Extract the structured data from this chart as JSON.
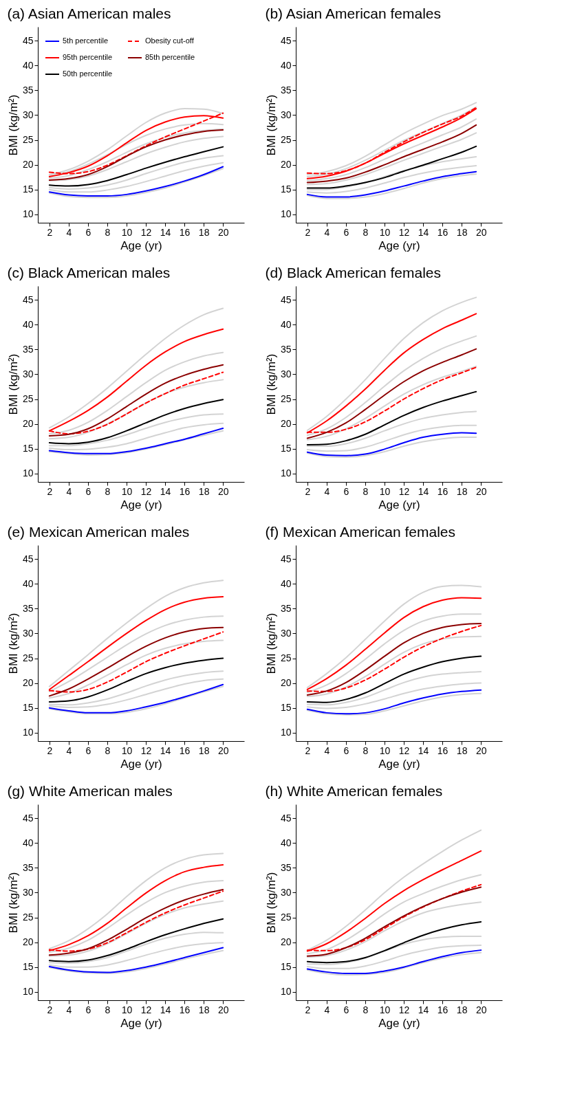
{
  "chart_data": [
    {
      "type": "line",
      "title": "(a) Asian American males",
      "xlabel": "Age (yr)",
      "ylabel": "BMI (kg/m²)",
      "x": [
        2,
        4,
        6,
        8,
        10,
        12,
        14,
        16,
        18,
        20
      ],
      "xlim": [
        0.8,
        22.2
      ],
      "ylim": [
        8.3,
        47.8
      ],
      "xticks": [
        2,
        4,
        6,
        8,
        10,
        12,
        14,
        16,
        18,
        20
      ],
      "yticks": [
        10,
        15,
        20,
        25,
        30,
        35,
        40,
        45
      ],
      "grid": false,
      "legend": "top left",
      "series": [
        {
          "color": "#d3d3d3",
          "values": [
            14.3,
            13.6,
            13.4,
            13.4,
            13.7,
            14.4,
            15.3,
            16.5,
            17.8,
            19.2
          ]
        },
        {
          "color": "#d3d3d3",
          "values": [
            15.0,
            14.5,
            14.5,
            14.9,
            15.6,
            16.6,
            17.7,
            18.8,
            19.7,
            20.4
          ]
        },
        {
          "color": "#d3d3d3",
          "values": [
            15.4,
            15.1,
            15.3,
            15.9,
            16.9,
            18.2,
            19.4,
            20.5,
            21.3,
            21.8
          ]
        },
        {
          "color": "#d3d3d3",
          "values": [
            16.8,
            17.0,
            17.7,
            19.0,
            20.6,
            22.2,
            23.5,
            24.6,
            25.3,
            25.7
          ]
        },
        {
          "color": "#d3d3d3",
          "values": [
            17.3,
            17.8,
            19.0,
            20.6,
            22.5,
            24.2,
            25.5,
            26.4,
            26.9,
            27.2
          ]
        },
        {
          "color": "#d3d3d3",
          "values": [
            17.8,
            18.6,
            20.1,
            22.0,
            24.1,
            25.9,
            27.2,
            28.0,
            28.3,
            28.1
          ]
        },
        {
          "color": "#d3d3d3",
          "values": [
            18.0,
            19.0,
            20.7,
            23.0,
            25.8,
            28.5,
            30.4,
            31.3,
            31.2,
            30.3
          ]
        },
        {
          "name": "5th percentile",
          "color": "#0000ff",
          "values": [
            14.5,
            13.9,
            13.7,
            13.7,
            14.0,
            14.7,
            15.6,
            16.7,
            18.0,
            19.6
          ]
        },
        {
          "name": "95th percentile",
          "color": "#ff0000",
          "values": [
            17.6,
            18.4,
            19.7,
            21.8,
            24.4,
            26.9,
            28.6,
            29.6,
            29.9,
            29.4
          ]
        },
        {
          "name": "50th percentile",
          "color": "#000000",
          "values": [
            15.9,
            15.7,
            16.0,
            16.8,
            18.0,
            19.3,
            20.5,
            21.6,
            22.6,
            23.6
          ]
        },
        {
          "name": "Obesity cut-off",
          "color": "#ff0000",
          "line_style": "dashed",
          "values": [
            18.5,
            18.2,
            18.6,
            19.9,
            21.8,
            23.8,
            25.6,
            27.2,
            28.8,
            30.4
          ]
        },
        {
          "name": "85th percentile",
          "color": "#8b0000",
          "values": [
            16.9,
            17.2,
            18.0,
            19.6,
            21.7,
            23.6,
            25.0,
            26.0,
            26.7,
            27.0
          ]
        }
      ]
    },
    {
      "type": "line",
      "title": "(b) Asian American females",
      "xlabel": "Age (yr)",
      "ylabel": "BMI (kg/m²)",
      "x": [
        2,
        4,
        6,
        8,
        10,
        12,
        14,
        16,
        18,
        19.5
      ],
      "xlim": [
        0.8,
        22.2
      ],
      "ylim": [
        8.3,
        47.8
      ],
      "xticks": [
        2,
        4,
        6,
        8,
        10,
        12,
        14,
        16,
        18,
        20
      ],
      "yticks": [
        10,
        15,
        20,
        25,
        30,
        35,
        40,
        45
      ],
      "grid": false,
      "series": [
        {
          "color": "#d3d3d3",
          "values": [
            13.8,
            13.2,
            13.2,
            13.5,
            14.2,
            15.2,
            16.3,
            17.2,
            17.8,
            18.1
          ]
        },
        {
          "color": "#d3d3d3",
          "values": [
            14.5,
            14.3,
            14.6,
            15.3,
            16.3,
            17.4,
            18.3,
            19.0,
            19.5,
            19.8
          ]
        },
        {
          "color": "#d3d3d3",
          "values": [
            15.0,
            15.0,
            15.5,
            16.4,
            17.6,
            18.8,
            19.8,
            20.6,
            21.2,
            21.6
          ]
        },
        {
          "color": "#d3d3d3",
          "values": [
            16.0,
            16.2,
            16.9,
            18.0,
            19.4,
            20.9,
            22.3,
            23.7,
            25.1,
            26.4
          ]
        },
        {
          "color": "#d3d3d3",
          "values": [
            16.8,
            17.2,
            18.0,
            19.4,
            21.1,
            22.8,
            24.4,
            26.0,
            27.6,
            29.2
          ]
        },
        {
          "color": "#d3d3d3",
          "values": [
            17.6,
            18.1,
            19.2,
            20.9,
            22.9,
            24.9,
            26.6,
            28.3,
            30.0,
            31.6
          ]
        },
        {
          "color": "#d3d3d3",
          "values": [
            18.0,
            18.6,
            19.8,
            21.7,
            24.0,
            26.3,
            28.2,
            29.9,
            31.2,
            32.5
          ]
        },
        {
          "color": "#0000ff",
          "values": [
            14.0,
            13.5,
            13.5,
            13.9,
            14.7,
            15.7,
            16.7,
            17.6,
            18.2,
            18.6
          ]
        },
        {
          "color": "#ff0000",
          "values": [
            17.2,
            17.7,
            18.7,
            20.3,
            22.3,
            24.2,
            25.9,
            27.6,
            29.5,
            31.3
          ]
        },
        {
          "color": "#000000",
          "values": [
            15.3,
            15.3,
            15.7,
            16.4,
            17.4,
            18.7,
            19.9,
            21.2,
            22.5,
            23.7
          ]
        },
        {
          "color": "#ff0000",
          "line_style": "dashed",
          "values": [
            18.3,
            18.2,
            18.8,
            20.3,
            22.5,
            24.6,
            26.5,
            28.2,
            29.8,
            31.5
          ]
        },
        {
          "color": "#8b0000",
          "values": [
            16.4,
            16.7,
            17.3,
            18.5,
            20.0,
            21.6,
            23.1,
            24.6,
            26.3,
            28.0
          ]
        }
      ]
    },
    {
      "type": "line",
      "title": "(c) Black American males",
      "xlabel": "Age (yr)",
      "ylabel": "BMI (kg/m²)",
      "x": [
        2,
        4,
        6,
        8,
        10,
        12,
        14,
        16,
        18,
        20
      ],
      "xlim": [
        0.8,
        22.2
      ],
      "ylim": [
        8.3,
        47.8
      ],
      "xticks": [
        2,
        4,
        6,
        8,
        10,
        12,
        14,
        16,
        18,
        20
      ],
      "yticks": [
        10,
        15,
        20,
        25,
        30,
        35,
        40,
        45
      ],
      "grid": false,
      "series": [
        {
          "color": "#d3d3d3",
          "values": [
            14.4,
            14.0,
            13.7,
            13.8,
            14.2,
            14.9,
            15.8,
            16.8,
            17.7,
            18.6
          ]
        },
        {
          "color": "#d3d3d3",
          "values": [
            15.1,
            14.8,
            14.9,
            15.3,
            16.0,
            17.1,
            18.2,
            19.2,
            19.8,
            20.1
          ]
        },
        {
          "color": "#d3d3d3",
          "values": [
            15.6,
            15.6,
            16.0,
            16.7,
            17.8,
            19.1,
            20.3,
            21.2,
            21.8,
            22.0
          ]
        },
        {
          "color": "#d3d3d3",
          "values": [
            17.0,
            17.3,
            18.3,
            20.0,
            22.0,
            24.2,
            26.1,
            27.4,
            28.3,
            28.9
          ]
        },
        {
          "color": "#d3d3d3",
          "values": [
            18.0,
            18.7,
            20.3,
            22.7,
            25.5,
            28.3,
            30.8,
            32.5,
            33.7,
            34.4
          ]
        },
        {
          "color": "#d3d3d3",
          "values": [
            19.2,
            21.4,
            24.1,
            27.2,
            30.6,
            34.0,
            37.2,
            39.9,
            42.0,
            43.3
          ]
        },
        {
          "color": "#0000ff",
          "values": [
            14.6,
            14.2,
            14.0,
            14.0,
            14.4,
            15.1,
            16.0,
            16.9,
            18.0,
            19.1
          ]
        },
        {
          "color": "#ff0000",
          "values": [
            18.6,
            20.5,
            22.7,
            25.4,
            28.6,
            31.8,
            34.5,
            36.6,
            38.0,
            39.1
          ]
        },
        {
          "color": "#000000",
          "values": [
            16.2,
            16.0,
            16.3,
            17.2,
            18.6,
            20.2,
            21.8,
            23.1,
            24.1,
            24.9
          ]
        },
        {
          "color": "#ff0000",
          "line_style": "dashed",
          "values": [
            18.6,
            18.0,
            18.5,
            19.9,
            22.0,
            24.2,
            26.1,
            27.8,
            29.1,
            30.4
          ]
        },
        {
          "color": "#8b0000",
          "values": [
            17.6,
            17.9,
            19.0,
            21.0,
            23.5,
            26.0,
            28.2,
            29.8,
            31.0,
            31.9
          ]
        }
      ]
    },
    {
      "type": "line",
      "title": "(d) Black American females",
      "xlabel": "Age (yr)",
      "ylabel": "BMI (kg/m²)",
      "x": [
        2,
        4,
        6,
        8,
        10,
        12,
        14,
        16,
        18,
        19.5
      ],
      "xlim": [
        0.8,
        22.2
      ],
      "ylim": [
        8.3,
        47.8
      ],
      "xticks": [
        2,
        4,
        6,
        8,
        10,
        12,
        14,
        16,
        18,
        20
      ],
      "yticks": [
        10,
        15,
        20,
        25,
        30,
        35,
        40,
        45
      ],
      "grid": false,
      "series": [
        {
          "color": "#d3d3d3",
          "values": [
            14.1,
            13.4,
            13.3,
            13.6,
            14.4,
            15.5,
            16.4,
            17.0,
            17.3,
            17.3
          ]
        },
        {
          "color": "#d3d3d3",
          "values": [
            14.8,
            14.5,
            14.6,
            15.3,
            16.5,
            17.8,
            18.8,
            19.4,
            19.7,
            19.7
          ]
        },
        {
          "color": "#d3d3d3",
          "values": [
            15.5,
            15.5,
            16.0,
            17.1,
            18.6,
            20.0,
            21.1,
            21.8,
            22.3,
            22.5
          ]
        },
        {
          "color": "#d3d3d3",
          "values": [
            16.8,
            17.5,
            19.0,
            21.1,
            23.6,
            26.0,
            27.9,
            29.4,
            30.6,
            31.6
          ]
        },
        {
          "color": "#d3d3d3",
          "values": [
            17.7,
            19.0,
            21.3,
            24.3,
            27.6,
            30.7,
            33.2,
            35.2,
            36.7,
            37.7
          ]
        },
        {
          "color": "#d3d3d3",
          "values": [
            18.7,
            21.5,
            25.0,
            28.9,
            33.2,
            37.2,
            40.4,
            42.8,
            44.5,
            45.5
          ]
        },
        {
          "color": "#0000ff",
          "values": [
            14.3,
            13.7,
            13.6,
            13.9,
            14.9,
            16.2,
            17.3,
            17.9,
            18.2,
            18.1
          ]
        },
        {
          "color": "#ff0000",
          "values": [
            18.2,
            20.6,
            23.6,
            27.0,
            30.8,
            34.3,
            37.0,
            39.2,
            40.9,
            42.2
          ]
        },
        {
          "color": "#000000",
          "values": [
            15.8,
            15.9,
            16.6,
            17.9,
            19.8,
            21.7,
            23.3,
            24.6,
            25.7,
            26.5
          ]
        },
        {
          "color": "#ff0000",
          "line_style": "dashed",
          "values": [
            18.3,
            18.3,
            18.9,
            20.4,
            22.6,
            25.0,
            27.1,
            28.9,
            30.3,
            31.4
          ]
        },
        {
          "color": "#8b0000",
          "values": [
            17.1,
            18.3,
            20.2,
            22.9,
            25.8,
            28.5,
            30.7,
            32.4,
            33.9,
            35.1
          ]
        }
      ]
    },
    {
      "type": "line",
      "title": "(e) Mexican American males",
      "xlabel": "Age (yr)",
      "ylabel": "BMI (kg/m²)",
      "x": [
        2,
        4,
        6,
        8,
        10,
        12,
        14,
        16,
        18,
        20
      ],
      "xlim": [
        0.8,
        22.2
      ],
      "ylim": [
        8.3,
        47.8
      ],
      "xticks": [
        2,
        4,
        6,
        8,
        10,
        12,
        14,
        16,
        18,
        20
      ],
      "yticks": [
        10,
        15,
        20,
        25,
        30,
        35,
        40,
        45
      ],
      "grid": false,
      "series": [
        {
          "color": "#d3d3d3",
          "values": [
            14.8,
            14.2,
            13.8,
            13.8,
            14.1,
            14.8,
            15.8,
            17.0,
            18.2,
            19.3
          ]
        },
        {
          "color": "#d3d3d3",
          "values": [
            15.4,
            15.1,
            15.2,
            15.7,
            16.6,
            17.7,
            18.8,
            19.8,
            20.5,
            20.8
          ]
        },
        {
          "color": "#d3d3d3",
          "values": [
            15.7,
            15.6,
            16.0,
            16.8,
            18.0,
            19.4,
            20.6,
            21.5,
            22.1,
            22.4
          ]
        },
        {
          "color": "#d3d3d3",
          "values": [
            17.0,
            17.9,
            19.6,
            21.6,
            23.7,
            25.6,
            27.0,
            27.9,
            28.4,
            28.6
          ]
        },
        {
          "color": "#d3d3d3",
          "values": [
            18.3,
            20.3,
            22.7,
            25.2,
            27.7,
            29.9,
            31.6,
            32.7,
            33.3,
            33.5
          ]
        },
        {
          "color": "#d3d3d3",
          "values": [
            19.3,
            22.5,
            25.7,
            29.0,
            32.1,
            35.0,
            37.5,
            39.2,
            40.2,
            40.7
          ]
        },
        {
          "color": "#0000ff",
          "values": [
            15.0,
            14.4,
            14.0,
            14.0,
            14.4,
            15.2,
            16.1,
            17.2,
            18.4,
            19.7
          ]
        },
        {
          "color": "#ff0000",
          "values": [
            18.7,
            21.5,
            24.3,
            27.2,
            30.0,
            32.6,
            34.8,
            36.3,
            37.1,
            37.4
          ]
        },
        {
          "color": "#000000",
          "values": [
            16.2,
            16.4,
            17.2,
            18.6,
            20.3,
            21.9,
            23.1,
            24.0,
            24.6,
            25.0
          ]
        },
        {
          "color": "#ff0000",
          "line_style": "dashed",
          "values": [
            18.5,
            18.2,
            18.7,
            20.2,
            22.2,
            24.3,
            26.0,
            27.5,
            28.9,
            30.3
          ]
        },
        {
          "color": "#8b0000",
          "values": [
            17.4,
            18.8,
            20.8,
            23.0,
            25.3,
            27.4,
            29.1,
            30.3,
            31.0,
            31.2
          ]
        }
      ]
    },
    {
      "type": "line",
      "title": "(f) Mexican American females",
      "xlabel": "Age (yr)",
      "ylabel": "BMI (kg/m²)",
      "x": [
        2,
        4,
        6,
        8,
        10,
        12,
        14,
        16,
        18,
        20
      ],
      "xlim": [
        0.8,
        22.2
      ],
      "ylim": [
        8.3,
        47.8
      ],
      "xticks": [
        2,
        4,
        6,
        8,
        10,
        12,
        14,
        16,
        18,
        20
      ],
      "yticks": [
        10,
        15,
        20,
        25,
        30,
        35,
        40,
        45
      ],
      "grid": false,
      "series": [
        {
          "color": "#d3d3d3",
          "values": [
            14.5,
            13.8,
            13.6,
            13.7,
            14.4,
            15.4,
            16.4,
            17.2,
            17.7,
            17.9
          ]
        },
        {
          "color": "#d3d3d3",
          "values": [
            15.2,
            14.9,
            15.1,
            15.8,
            16.8,
            17.9,
            18.8,
            19.4,
            19.8,
            20.0
          ]
        },
        {
          "color": "#d3d3d3",
          "values": [
            15.7,
            15.6,
            16.1,
            17.1,
            18.6,
            20.1,
            21.2,
            21.8,
            22.1,
            22.3
          ]
        },
        {
          "color": "#d3d3d3",
          "values": [
            17.3,
            17.8,
            19.2,
            21.3,
            23.8,
            26.2,
            27.9,
            28.9,
            29.3,
            29.4
          ]
        },
        {
          "color": "#d3d3d3",
          "values": [
            18.1,
            19.6,
            21.9,
            24.8,
            27.9,
            30.6,
            32.5,
            33.5,
            33.9,
            33.9
          ]
        },
        {
          "color": "#d3d3d3",
          "values": [
            19.1,
            21.9,
            25.1,
            28.8,
            32.5,
            35.9,
            38.3,
            39.5,
            39.7,
            39.4
          ]
        },
        {
          "color": "#0000ff",
          "values": [
            14.7,
            14.0,
            13.8,
            14.0,
            14.8,
            16.0,
            17.0,
            17.8,
            18.3,
            18.6
          ]
        },
        {
          "color": "#ff0000",
          "values": [
            18.7,
            20.9,
            23.6,
            26.8,
            30.1,
            33.2,
            35.4,
            36.7,
            37.2,
            37.1
          ]
        },
        {
          "color": "#000000",
          "values": [
            16.2,
            16.1,
            16.7,
            18.0,
            19.9,
            21.8,
            23.2,
            24.3,
            25.0,
            25.4
          ]
        },
        {
          "color": "#ff0000",
          "line_style": "dashed",
          "values": [
            18.4,
            18.3,
            19.0,
            20.6,
            22.8,
            25.2,
            27.3,
            29.0,
            30.4,
            31.6
          ]
        },
        {
          "color": "#8b0000",
          "values": [
            17.6,
            18.4,
            20.1,
            22.6,
            25.4,
            28.1,
            30.0,
            31.2,
            31.8,
            32.0
          ]
        }
      ]
    },
    {
      "type": "line",
      "title": "(g) White American males",
      "xlabel": "Age (yr)",
      "ylabel": "BMI (kg/m²)",
      "x": [
        2,
        4,
        6,
        8,
        10,
        12,
        14,
        16,
        18,
        20
      ],
      "xlim": [
        0.8,
        22.2
      ],
      "ylim": [
        8.3,
        47.8
      ],
      "xticks": [
        2,
        4,
        6,
        8,
        10,
        12,
        14,
        16,
        18,
        20
      ],
      "yticks": [
        10,
        15,
        20,
        25,
        30,
        35,
        40,
        45
      ],
      "grid": false,
      "series": [
        {
          "color": "#d3d3d3",
          "values": [
            14.9,
            14.2,
            13.8,
            13.7,
            14.0,
            14.7,
            15.6,
            16.6,
            17.5,
            18.3
          ]
        },
        {
          "color": "#d3d3d3",
          "values": [
            15.4,
            15.0,
            15.0,
            15.4,
            16.3,
            17.4,
            18.4,
            19.2,
            19.7,
            19.9
          ]
        },
        {
          "color": "#d3d3d3",
          "values": [
            15.9,
            15.8,
            16.1,
            16.9,
            18.2,
            19.6,
            20.8,
            21.6,
            22.0,
            21.9
          ]
        },
        {
          "color": "#d3d3d3",
          "values": [
            17.2,
            17.4,
            18.2,
            19.7,
            21.7,
            23.8,
            25.6,
            26.9,
            27.7,
            28.3
          ]
        },
        {
          "color": "#d3d3d3",
          "values": [
            18.0,
            18.8,
            20.4,
            22.8,
            25.5,
            28.0,
            30.0,
            31.3,
            32.1,
            32.4
          ]
        },
        {
          "color": "#d3d3d3",
          "values": [
            18.7,
            20.3,
            22.7,
            25.7,
            29.2,
            32.4,
            35.0,
            36.7,
            37.6,
            37.9
          ]
        },
        {
          "color": "#0000ff",
          "values": [
            15.1,
            14.4,
            14.0,
            13.9,
            14.3,
            15.0,
            15.9,
            16.9,
            17.9,
            18.9
          ]
        },
        {
          "color": "#ff0000",
          "values": [
            18.3,
            19.5,
            21.3,
            23.8,
            26.9,
            29.9,
            32.4,
            34.2,
            35.1,
            35.6
          ]
        },
        {
          "color": "#000000",
          "values": [
            16.3,
            16.1,
            16.4,
            17.3,
            18.6,
            20.1,
            21.5,
            22.7,
            23.8,
            24.7
          ]
        },
        {
          "color": "#ff0000",
          "line_style": "dashed",
          "values": [
            18.5,
            18.2,
            18.6,
            19.9,
            21.9,
            24.0,
            25.9,
            27.5,
            28.9,
            30.3
          ]
        },
        {
          "color": "#8b0000",
          "values": [
            17.4,
            17.8,
            18.7,
            20.4,
            22.6,
            24.9,
            26.9,
            28.5,
            29.7,
            30.6
          ]
        }
      ]
    },
    {
      "type": "line",
      "title": "(h) White American females",
      "xlabel": "Age (yr)",
      "ylabel": "BMI (kg/m²)",
      "x": [
        2,
        4,
        6,
        8,
        10,
        12,
        14,
        16,
        18,
        20
      ],
      "xlim": [
        0.8,
        22.2
      ],
      "ylim": [
        8.3,
        47.8
      ],
      "xticks": [
        2,
        4,
        6,
        8,
        10,
        12,
        14,
        16,
        18,
        20
      ],
      "yticks": [
        10,
        15,
        20,
        25,
        30,
        35,
        40,
        45
      ],
      "grid": false,
      "series": [
        {
          "color": "#d3d3d3",
          "values": [
            14.4,
            13.7,
            13.4,
            13.5,
            13.9,
            14.8,
            15.9,
            16.8,
            17.5,
            17.9
          ]
        },
        {
          "color": "#d3d3d3",
          "values": [
            15.1,
            14.7,
            14.7,
            15.2,
            16.2,
            17.4,
            18.3,
            19.0,
            19.3,
            19.4
          ]
        },
        {
          "color": "#d3d3d3",
          "values": [
            15.6,
            15.5,
            15.9,
            16.8,
            18.2,
            19.6,
            20.5,
            21.0,
            21.2,
            21.2
          ]
        },
        {
          "color": "#d3d3d3",
          "values": [
            17.0,
            17.3,
            18.4,
            20.1,
            22.3,
            24.3,
            25.9,
            26.9,
            27.6,
            28.1
          ]
        },
        {
          "color": "#d3d3d3",
          "values": [
            17.7,
            18.5,
            20.4,
            22.9,
            25.7,
            28.1,
            29.8,
            31.3,
            32.6,
            33.6
          ]
        },
        {
          "color": "#d3d3d3",
          "values": [
            18.4,
            20.4,
            23.2,
            26.5,
            30.0,
            33.1,
            35.8,
            38.3,
            40.6,
            42.6
          ]
        },
        {
          "color": "#0000ff",
          "values": [
            14.6,
            14.0,
            13.7,
            13.7,
            14.2,
            15.0,
            16.1,
            17.1,
            17.9,
            18.4
          ]
        },
        {
          "color": "#ff0000",
          "values": [
            18.2,
            19.7,
            22.0,
            24.8,
            27.8,
            30.4,
            32.6,
            34.6,
            36.5,
            38.4
          ]
        },
        {
          "color": "#000000",
          "values": [
            16.1,
            15.9,
            16.1,
            16.9,
            18.3,
            19.9,
            21.4,
            22.6,
            23.5,
            24.1
          ]
        },
        {
          "color": "#ff0000",
          "line_style": "dashed",
          "values": [
            18.4,
            18.3,
            18.9,
            20.5,
            22.8,
            25.1,
            27.1,
            28.8,
            30.3,
            31.6
          ]
        },
        {
          "color": "#8b0000",
          "values": [
            17.2,
            17.6,
            18.9,
            20.8,
            23.1,
            25.3,
            27.2,
            28.8,
            30.1,
            31.1
          ]
        }
      ]
    }
  ]
}
